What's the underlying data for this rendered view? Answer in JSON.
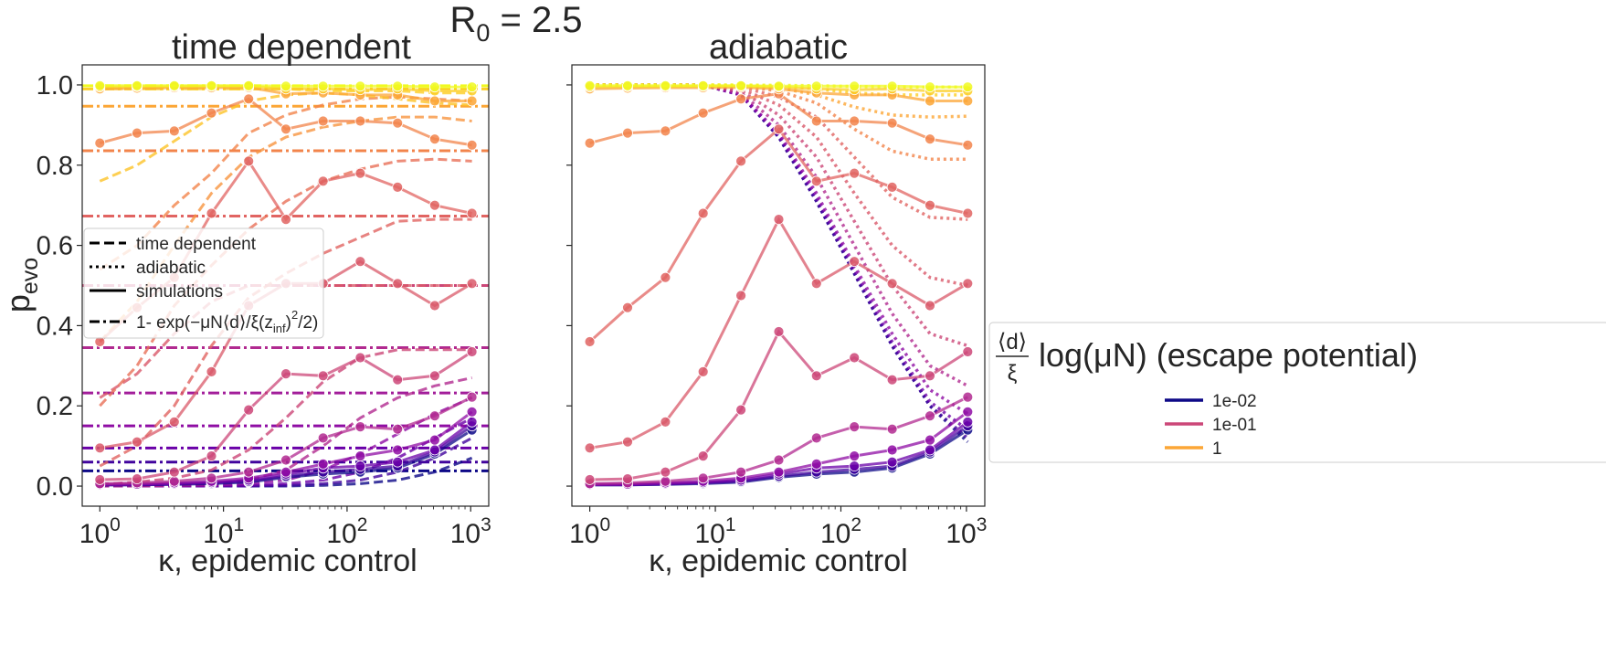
{
  "figure": {
    "suptitle_base": "R",
    "suptitle_sub": "0",
    "suptitle_rest": " = 2.5",
    "ylabel_base": "p",
    "ylabel_sub": "evo"
  },
  "chart_data": [
    {
      "type": "line",
      "title": "time dependent",
      "xlabel": "κ, epidemic control",
      "ylabel": "p_evo",
      "x_scale": "log",
      "xlim": [
        0.72,
        1400
      ],
      "ylim": [
        -0.05,
        1.05
      ],
      "x_ticks": [
        1,
        10,
        100,
        1000
      ],
      "x_tick_labels": [
        {
          "base": "10",
          "exp": "0"
        },
        {
          "base": "10",
          "exp": "1"
        },
        {
          "base": "10",
          "exp": "2"
        },
        {
          "base": "10",
          "exp": "3"
        }
      ],
      "y_ticks": [
        0.0,
        0.2,
        0.4,
        0.6,
        0.8,
        1.0
      ],
      "y_tick_labels": [
        "0.0",
        "0.2",
        "0.4",
        "0.6",
        "0.8",
        "1.0"
      ],
      "grid": false,
      "legend_placement": "center-left",
      "legend_entries": [
        {
          "style": "dashed",
          "label": "time dependent"
        },
        {
          "style": "dotted",
          "label": "adiabatic"
        },
        {
          "style": "solid",
          "label": "simulations"
        },
        {
          "style": "dashdot",
          "label_main": "1- exp(−μN⟨d⟩/ξ(z",
          "label_sub": "inf",
          "label_close": ")",
          "label_sup": "2",
          "label_end": "/2)"
        }
      ],
      "x": [
        1,
        2,
        4,
        8,
        16,
        32,
        64,
        128,
        256,
        512,
        1024
      ],
      "simulations": [
        {
          "color": "#0d0887",
          "values": [
            0.003,
            0.003,
            0.004,
            0.006,
            0.01,
            0.022,
            0.03,
            0.035,
            0.045,
            0.08,
            0.14
          ]
        },
        {
          "color": "#41049d",
          "values": [
            0.003,
            0.003,
            0.005,
            0.008,
            0.012,
            0.025,
            0.035,
            0.042,
            0.05,
            0.085,
            0.15
          ]
        },
        {
          "color": "#6a00a8",
          "values": [
            0.004,
            0.004,
            0.006,
            0.009,
            0.015,
            0.03,
            0.045,
            0.05,
            0.06,
            0.09,
            0.16
          ]
        },
        {
          "color": "#8f0da4",
          "values": [
            0.004,
            0.005,
            0.008,
            0.012,
            0.02,
            0.035,
            0.055,
            0.075,
            0.09,
            0.115,
            0.185
          ]
        },
        {
          "color": "#b12a90",
          "values": [
            0.006,
            0.008,
            0.012,
            0.02,
            0.035,
            0.065,
            0.12,
            0.148,
            0.142,
            0.175,
            0.222
          ]
        },
        {
          "color": "#cc4778",
          "values": [
            0.016,
            0.018,
            0.035,
            0.075,
            0.19,
            0.28,
            0.275,
            0.32,
            0.265,
            0.275,
            0.335
          ]
        },
        {
          "color": "#d9596a",
          "values": [
            0.095,
            0.11,
            0.16,
            0.285,
            0.45,
            0.505,
            0.505,
            0.56,
            0.505,
            0.45,
            0.505
          ]
        },
        {
          "color": "#e16462",
          "values": [
            0.36,
            0.445,
            0.52,
            0.68,
            0.81,
            0.665,
            0.76,
            0.78,
            0.745,
            0.7,
            0.68
          ]
        },
        {
          "color": "#f2844b",
          "values": [
            0.855,
            0.88,
            0.885,
            0.93,
            0.965,
            0.89,
            0.91,
            0.91,
            0.905,
            0.865,
            0.85
          ]
        },
        {
          "color": "#fca636",
          "values": [
            0.99,
            0.992,
            0.993,
            0.993,
            0.994,
            0.978,
            0.98,
            0.975,
            0.975,
            0.96,
            0.96
          ]
        },
        {
          "color": "#fcce25",
          "values": [
            0.995,
            0.996,
            0.996,
            0.997,
            0.997,
            0.99,
            0.99,
            0.988,
            0.99,
            0.985,
            0.985
          ]
        },
        {
          "color": "#f0f921",
          "values": [
            0.998,
            0.998,
            0.998,
            0.998,
            0.998,
            0.997,
            0.997,
            0.997,
            0.997,
            0.995,
            0.995
          ]
        }
      ],
      "theory_dashed": [
        {
          "color": "#0d0887",
          "values": [
            0.0,
            0.0,
            0.0,
            0.0,
            0.0,
            0.0,
            0.002,
            0.006,
            0.015,
            0.035,
            0.07
          ]
        },
        {
          "color": "#41049d",
          "values": [
            0.0,
            0.0,
            0.0,
            0.0,
            0.0,
            0.002,
            0.006,
            0.015,
            0.035,
            0.07,
            0.12
          ]
        },
        {
          "color": "#6a00a8",
          "values": [
            0.0,
            0.0,
            0.0,
            0.0,
            0.002,
            0.006,
            0.015,
            0.035,
            0.07,
            0.12,
            0.17
          ]
        },
        {
          "color": "#8f0da4",
          "values": [
            0.0,
            0.0,
            0.0,
            0.002,
            0.006,
            0.015,
            0.04,
            0.08,
            0.13,
            0.18,
            0.22
          ]
        },
        {
          "color": "#b12a90",
          "values": [
            0.0,
            0.0,
            0.002,
            0.006,
            0.015,
            0.04,
            0.1,
            0.17,
            0.22,
            0.25,
            0.27
          ]
        },
        {
          "color": "#cc4778",
          "values": [
            0.005,
            0.01,
            0.02,
            0.04,
            0.09,
            0.17,
            0.26,
            0.32,
            0.34,
            0.34,
            0.34
          ]
        },
        {
          "color": "#d9596a",
          "values": [
            0.22,
            0.28,
            0.38,
            0.46,
            0.5,
            0.5,
            0.5,
            0.5,
            0.5,
            0.5,
            0.5
          ]
        },
        {
          "color": "#e16462",
          "values": [
            0.05,
            0.1,
            0.2,
            0.35,
            0.47,
            0.53,
            0.58,
            0.62,
            0.66,
            0.665,
            0.665
          ]
        },
        {
          "color": "#e87059",
          "values": [
            0.2,
            0.3,
            0.45,
            0.55,
            0.64,
            0.71,
            0.76,
            0.79,
            0.81,
            0.815,
            0.81
          ]
        },
        {
          "color": "#f2844b",
          "values": [
            0.54,
            0.6,
            0.7,
            0.78,
            0.88,
            0.925,
            0.95,
            0.965,
            0.97,
            0.965,
            0.96
          ]
        },
        {
          "color": "#f89540",
          "values": [
            0.36,
            0.46,
            0.6,
            0.73,
            0.82,
            0.87,
            0.895,
            0.91,
            0.92,
            0.92,
            0.91
          ]
        },
        {
          "color": "#fdc328",
          "values": [
            0.76,
            0.8,
            0.86,
            0.92,
            0.96,
            0.975,
            0.98,
            0.975,
            0.965,
            0.955,
            0.95
          ]
        },
        {
          "color": "#fcce25",
          "values": [
            0.99,
            0.99,
            0.99,
            0.99,
            0.99,
            0.99,
            0.985,
            0.985,
            0.985,
            0.98,
            0.98
          ]
        }
      ],
      "asymptotes": [
        {
          "color": "#0d0887",
          "value": 0.038
        },
        {
          "color": "#41049d",
          "value": 0.06
        },
        {
          "color": "#6a00a8",
          "value": 0.095
        },
        {
          "color": "#8f0da4",
          "value": 0.15
        },
        {
          "color": "#a21d9a",
          "value": 0.232
        },
        {
          "color": "#b12a90",
          "value": 0.345
        },
        {
          "color": "#cc4778",
          "value": 0.5
        },
        {
          "color": "#e16462",
          "value": 0.673
        },
        {
          "color": "#f2844b",
          "value": 0.836
        },
        {
          "color": "#fca636",
          "value": 0.947
        },
        {
          "color": "#fcce25",
          "value": 0.99
        },
        {
          "color": "#f0f921",
          "value": 0.998
        }
      ]
    },
    {
      "type": "line",
      "title": "adiabatic",
      "xlabel": "κ, epidemic control",
      "x_scale": "log",
      "xlim": [
        0.72,
        1400
      ],
      "ylim": [
        -0.05,
        1.05
      ],
      "x_ticks": [
        1,
        10,
        100,
        1000
      ],
      "x_tick_labels": [
        {
          "base": "10",
          "exp": "0"
        },
        {
          "base": "10",
          "exp": "1"
        },
        {
          "base": "10",
          "exp": "2"
        },
        {
          "base": "10",
          "exp": "3"
        }
      ],
      "grid": false,
      "x": [
        1,
        2,
        4,
        8,
        16,
        32,
        64,
        128,
        256,
        512,
        1024
      ],
      "simulations": [
        {
          "color": "#0d0887",
          "values": [
            0.003,
            0.003,
            0.004,
            0.006,
            0.01,
            0.022,
            0.03,
            0.035,
            0.045,
            0.08,
            0.14
          ]
        },
        {
          "color": "#41049d",
          "values": [
            0.003,
            0.003,
            0.005,
            0.008,
            0.012,
            0.025,
            0.035,
            0.042,
            0.05,
            0.085,
            0.15
          ]
        },
        {
          "color": "#6a00a8",
          "values": [
            0.004,
            0.004,
            0.006,
            0.009,
            0.015,
            0.03,
            0.045,
            0.05,
            0.06,
            0.09,
            0.16
          ]
        },
        {
          "color": "#8f0da4",
          "values": [
            0.004,
            0.005,
            0.008,
            0.012,
            0.02,
            0.035,
            0.055,
            0.075,
            0.09,
            0.115,
            0.185
          ]
        },
        {
          "color": "#b12a90",
          "values": [
            0.006,
            0.008,
            0.012,
            0.02,
            0.035,
            0.065,
            0.12,
            0.148,
            0.142,
            0.175,
            0.222
          ]
        },
        {
          "color": "#cc4778",
          "values": [
            0.016,
            0.018,
            0.035,
            0.075,
            0.19,
            0.385,
            0.275,
            0.32,
            0.265,
            0.275,
            0.335
          ]
        },
        {
          "color": "#d9596a",
          "values": [
            0.095,
            0.11,
            0.16,
            0.285,
            0.475,
            0.665,
            0.505,
            0.56,
            0.505,
            0.45,
            0.505
          ]
        },
        {
          "color": "#e16462",
          "values": [
            0.36,
            0.445,
            0.52,
            0.68,
            0.81,
            0.89,
            0.76,
            0.78,
            0.745,
            0.7,
            0.68
          ]
        },
        {
          "color": "#f2844b",
          "values": [
            0.855,
            0.88,
            0.885,
            0.93,
            0.965,
            0.978,
            0.91,
            0.91,
            0.905,
            0.865,
            0.85
          ]
        },
        {
          "color": "#fca636",
          "values": [
            0.99,
            0.992,
            0.993,
            0.993,
            0.994,
            0.99,
            0.98,
            0.975,
            0.975,
            0.96,
            0.96
          ]
        },
        {
          "color": "#fcce25",
          "values": [
            0.995,
            0.996,
            0.996,
            0.997,
            0.997,
            0.995,
            0.99,
            0.988,
            0.99,
            0.985,
            0.985
          ]
        },
        {
          "color": "#f0f921",
          "values": [
            0.998,
            0.998,
            0.998,
            0.998,
            0.998,
            0.997,
            0.997,
            0.997,
            0.997,
            0.995,
            0.995
          ]
        }
      ],
      "theory_dotted": [
        {
          "color": "#0d0887",
          "values": [
            1.0,
            1.0,
            1.0,
            1.0,
            0.975,
            0.87,
            0.71,
            0.53,
            0.35,
            0.2,
            0.11
          ]
        },
        {
          "color": "#41049d",
          "values": [
            1.0,
            1.0,
            1.0,
            1.0,
            0.975,
            0.87,
            0.71,
            0.53,
            0.35,
            0.2,
            0.12
          ]
        },
        {
          "color": "#6a00a8",
          "values": [
            1.0,
            1.0,
            1.0,
            1.0,
            0.975,
            0.875,
            0.72,
            0.54,
            0.36,
            0.21,
            0.14
          ]
        },
        {
          "color": "#8f0da4",
          "values": [
            1.0,
            1.0,
            1.0,
            1.0,
            0.975,
            0.88,
            0.73,
            0.55,
            0.38,
            0.24,
            0.18
          ]
        },
        {
          "color": "#b12a90",
          "values": [
            1.0,
            1.0,
            1.0,
            1.0,
            0.98,
            0.9,
            0.77,
            0.6,
            0.43,
            0.3,
            0.25
          ]
        },
        {
          "color": "#cc4778",
          "values": [
            1.0,
            1.0,
            1.0,
            1.0,
            0.985,
            0.925,
            0.82,
            0.66,
            0.5,
            0.38,
            0.35
          ]
        },
        {
          "color": "#d9596a",
          "values": [
            1.0,
            1.0,
            1.0,
            1.0,
            0.99,
            0.95,
            0.87,
            0.73,
            0.6,
            0.52,
            0.5
          ]
        },
        {
          "color": "#e16462",
          "values": [
            1.0,
            1.0,
            1.0,
            1.0,
            0.995,
            0.97,
            0.92,
            0.82,
            0.72,
            0.67,
            0.665
          ]
        },
        {
          "color": "#f2844b",
          "values": [
            1.0,
            1.0,
            1.0,
            1.0,
            0.997,
            0.985,
            0.955,
            0.89,
            0.835,
            0.815,
            0.815
          ]
        },
        {
          "color": "#fca636",
          "values": [
            1.0,
            1.0,
            1.0,
            1.0,
            0.998,
            0.993,
            0.975,
            0.945,
            0.925,
            0.92,
            0.922
          ]
        },
        {
          "color": "#fcce25",
          "values": [
            1.0,
            1.0,
            1.0,
            1.0,
            0.999,
            0.997,
            0.99,
            0.98,
            0.975,
            0.975,
            0.975
          ]
        },
        {
          "color": "#f0f921",
          "values": [
            1.0,
            1.0,
            1.0,
            1.0,
            1.0,
            0.999,
            0.998,
            0.996,
            0.995,
            0.995,
            0.995
          ]
        }
      ]
    }
  ],
  "colorbar_legend": {
    "title_frac_num": "⟨d⟩",
    "title_frac_den": "ξ",
    "title_text": "log(μN) (escape potential)",
    "placement": "right",
    "entries": [
      {
        "label": "1e-02",
        "color": "#0d0887"
      },
      {
        "label": "1e-01",
        "color": "#cc4778"
      },
      {
        "label": "1",
        "color": "#fca636"
      }
    ]
  }
}
